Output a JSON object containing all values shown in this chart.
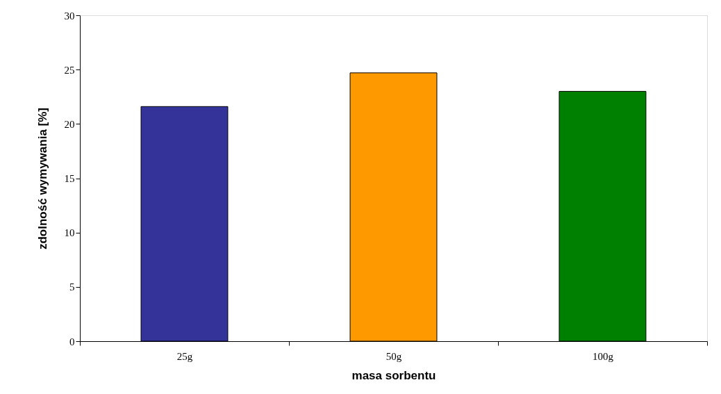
{
  "chart_data": {
    "type": "bar",
    "xlabel": "masa sorbentu",
    "ylabel": "zdolność wymywania [%]",
    "categories": [
      "25g",
      "50g",
      "100g"
    ],
    "values": [
      21.6,
      24.7,
      23.0
    ],
    "colors": [
      "#333399",
      "#ff9900",
      "#008000"
    ],
    "ylim": [
      0,
      30
    ],
    "yticks": [
      0,
      5,
      10,
      15,
      20,
      25,
      30
    ],
    "grid": false
  }
}
